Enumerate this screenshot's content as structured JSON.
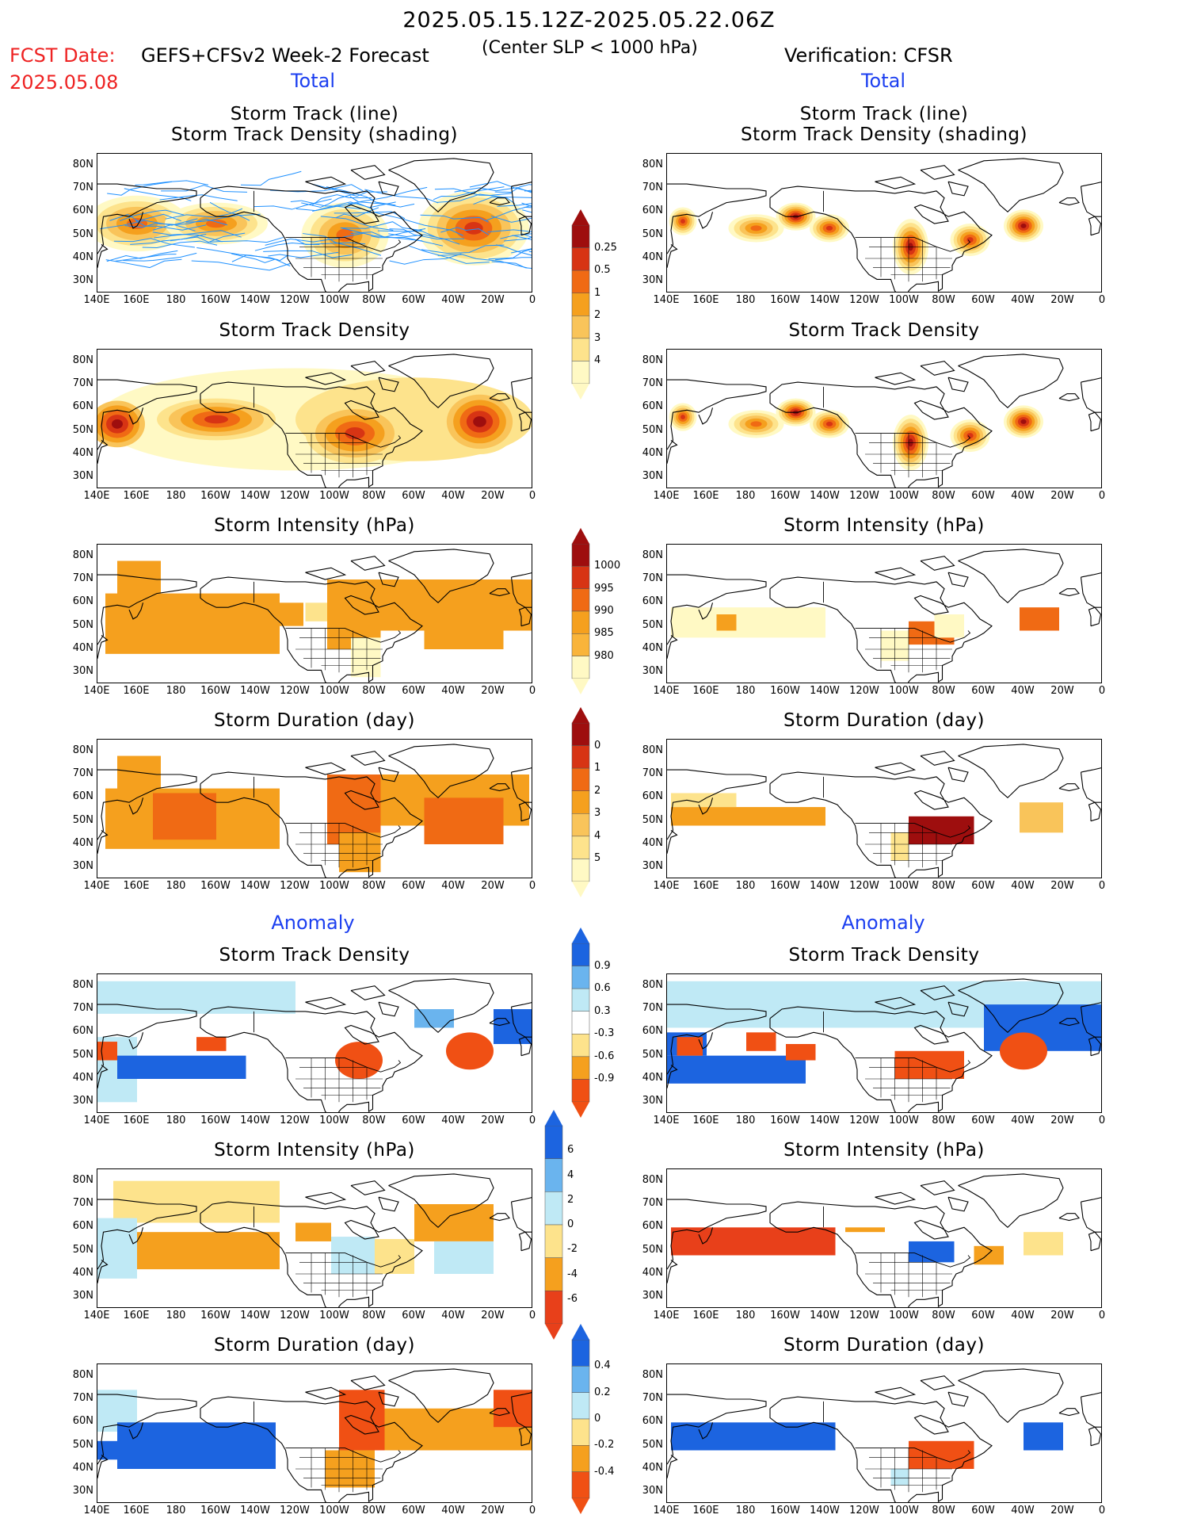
{
  "header": {
    "period": "2025.05.15.12Z-2025.05.22.06Z",
    "fcst_label": "FCST Date:",
    "fcst_date": "2025.05.08",
    "model": "GEFS+CFSv2 Week-2 Forecast",
    "criterion": "(Center SLP < 1000 hPa)",
    "verification": "Verification: CFSR"
  },
  "sections": {
    "total": "Total",
    "anomaly": "Anomaly"
  },
  "panel_titles": {
    "track_line": "Storm Track (line)",
    "track_shading": "Storm Track Density (shading)",
    "density": "Storm Track Density",
    "intensity": "Storm Intensity (hPa)",
    "duration": "Storm Duration (day)"
  },
  "axes": {
    "lat_labels": [
      "80N",
      "70N",
      "60N",
      "50N",
      "40N",
      "30N"
    ],
    "lon_labels": [
      "140E",
      "160E",
      "180",
      "160W",
      "140W",
      "120W",
      "100W",
      "80W",
      "60W",
      "40W",
      "20W",
      "0"
    ]
  },
  "colorbars": {
    "density_total": {
      "levels": [
        "0.25",
        "0.5",
        "1",
        "2",
        "3",
        "4"
      ],
      "colors": [
        "#fff9c4",
        "#fde38c",
        "#f9c45a",
        "#f5a01e",
        "#f06a14",
        "#d73414",
        "#9e0e0e"
      ]
    },
    "intensity_total": {
      "levels": [
        "1000",
        "995",
        "990",
        "985",
        "980"
      ],
      "colors": [
        "#fff9c4",
        "#f9b43a",
        "#f5a01e",
        "#f06a14",
        "#d73414",
        "#9e0e0e"
      ]
    },
    "duration_total": {
      "levels": [
        "0",
        "1",
        "2",
        "3",
        "4",
        "5"
      ],
      "colors": [
        "#fff9c4",
        "#fde38c",
        "#f9c45a",
        "#f5a01e",
        "#f06a14",
        "#d73414",
        "#9e0e0e"
      ]
    },
    "density_anom": {
      "levels": [
        "0.9",
        "0.6",
        "0.3",
        "-0.3",
        "-0.6",
        "-0.9"
      ],
      "colors": [
        "#f05014",
        "#f5a01e",
        "#fde38c",
        "#ffffff",
        "#bfe9f5",
        "#6ab4ee",
        "#1c64e0"
      ]
    },
    "intensity_anom": {
      "levels": [
        "6",
        "4",
        "2",
        "0",
        "-2",
        "-4",
        "-6"
      ],
      "colors": [
        "#e8401a",
        "#f5a01e",
        "#fde38c",
        "#bfe9f5",
        "#6ab4ee",
        "#1c64e0"
      ]
    },
    "duration_anom": {
      "levels": [
        "0.4",
        "0.2",
        "0",
        "-0.2",
        "-0.4"
      ],
      "colors": [
        "#f05014",
        "#f5a01e",
        "#fde38c",
        "#bfe9f5",
        "#6ab4ee",
        "#1c64e0"
      ]
    }
  },
  "colors": {
    "title_red": "#ee2222",
    "section_blue": "#1c3ff0",
    "track_line": "#1e90ff"
  }
}
